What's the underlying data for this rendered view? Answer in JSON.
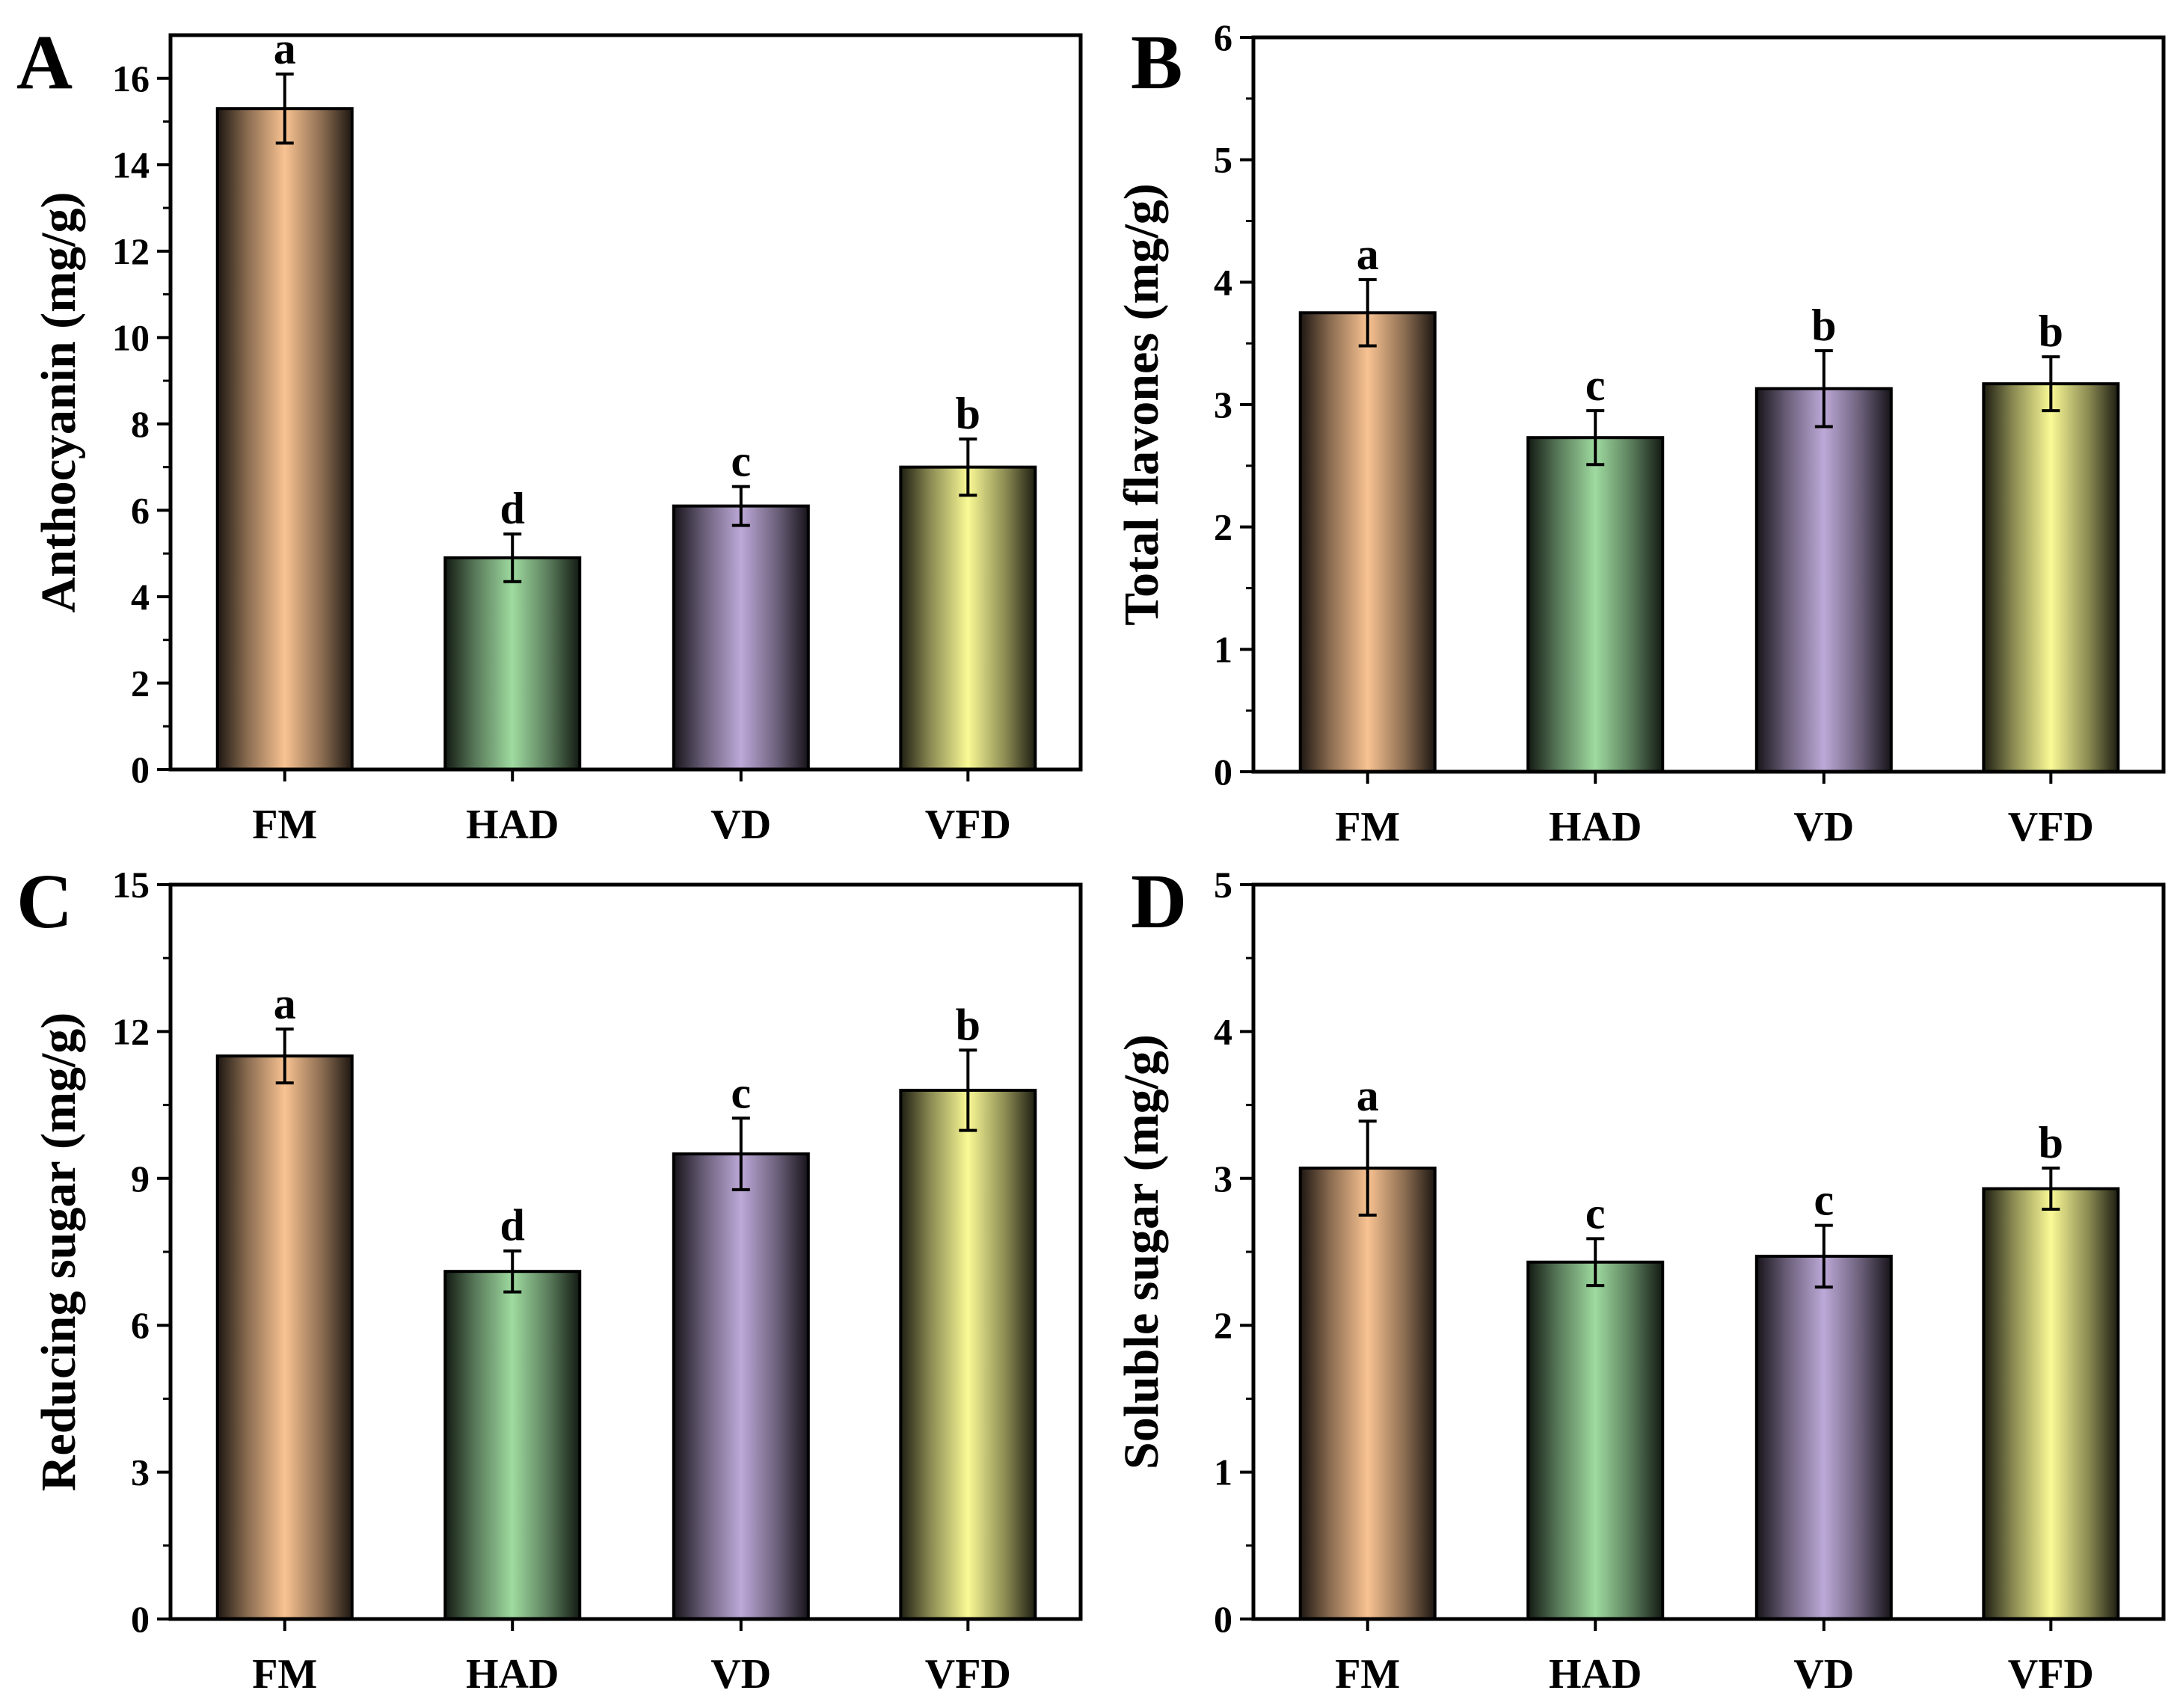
{
  "colors": {
    "FM": "#f9c392",
    "HAD": "#9fdba0",
    "VD": "#bda9d8",
    "VFD": "#fafa96",
    "edge": "#000000"
  },
  "chart_data": [
    {
      "type": "bar",
      "panel": "A",
      "ylabel": "Anthocyanin (mg/g)",
      "categories": [
        "FM",
        "HAD",
        "VD",
        "VFD"
      ],
      "values": [
        15.3,
        4.9,
        6.1,
        7.0
      ],
      "errors": [
        0.8,
        0.55,
        0.45,
        0.65
      ],
      "letters": [
        "a",
        "d",
        "c",
        "b"
      ],
      "ylim": [
        0,
        17
      ],
      "yticks": [
        0,
        2,
        4,
        6,
        8,
        10,
        12,
        14,
        16
      ]
    },
    {
      "type": "bar",
      "panel": "B",
      "ylabel": "Total flavones (mg/g)",
      "categories": [
        "FM",
        "HAD",
        "VD",
        "VFD"
      ],
      "values": [
        3.75,
        2.73,
        3.13,
        3.17
      ],
      "errors": [
        0.27,
        0.22,
        0.31,
        0.22
      ],
      "letters": [
        "a",
        "c",
        "b",
        "b"
      ],
      "ylim": [
        0,
        6
      ],
      "yticks": [
        0,
        1,
        2,
        3,
        4,
        5,
        6
      ]
    },
    {
      "type": "bar",
      "panel": "C",
      "ylabel": "Reducing sugar (mg/g)",
      "categories": [
        "FM",
        "HAD",
        "VD",
        "VFD"
      ],
      "values": [
        11.5,
        7.1,
        9.5,
        10.8
      ],
      "errors": [
        0.55,
        0.42,
        0.73,
        0.82
      ],
      "letters": [
        "a",
        "d",
        "c",
        "b"
      ],
      "ylim": [
        0,
        15
      ],
      "yticks": [
        0,
        3,
        6,
        9,
        12,
        15
      ]
    },
    {
      "type": "bar",
      "panel": "D",
      "ylabel": "Soluble sugar (mg/g)",
      "categories": [
        "FM",
        "HAD",
        "VD",
        "VFD"
      ],
      "values": [
        3.07,
        2.43,
        2.47,
        2.93
      ],
      "errors": [
        0.32,
        0.16,
        0.21,
        0.14
      ],
      "letters": [
        "a",
        "c",
        "c",
        "b"
      ],
      "ylim": [
        0,
        5
      ],
      "yticks": [
        0,
        1,
        2,
        3,
        4,
        5
      ]
    }
  ]
}
